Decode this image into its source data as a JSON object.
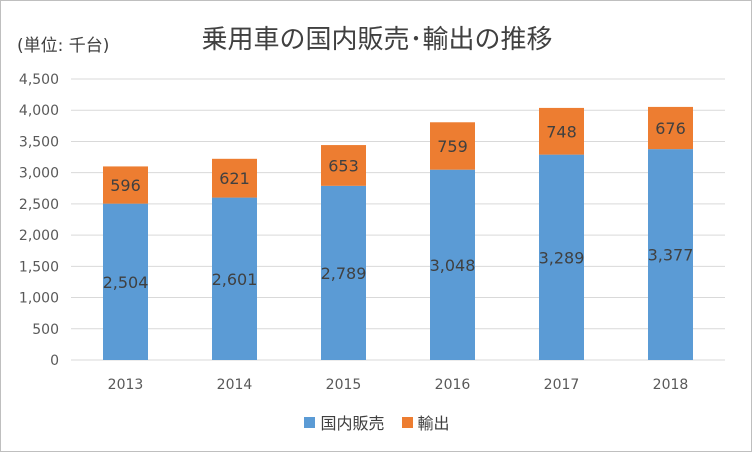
{
  "chart_data": {
    "type": "bar",
    "stacked": true,
    "title": "乗用車の国内販売･輸出の推移",
    "unit_label": "(単位: 千台)",
    "categories": [
      "2013",
      "2014",
      "2015",
      "2016",
      "2017",
      "2018"
    ],
    "series": [
      {
        "name": "国内販売",
        "color": "#5b9bd5",
        "values": [
          2504,
          2601,
          2789,
          3048,
          3289,
          3377
        ]
      },
      {
        "name": "輸出",
        "color": "#ed7d31",
        "values": [
          596,
          621,
          653,
          759,
          748,
          676
        ]
      }
    ],
    "ylim": [
      0,
      4500
    ],
    "yticks": [
      0,
      500,
      1000,
      1500,
      2000,
      2500,
      3000,
      3500,
      4000,
      4500
    ],
    "ytick_labels": [
      "0",
      "500",
      "1,000",
      "1,500",
      "2,000",
      "2,500",
      "3,000",
      "3,500",
      "4,000",
      "4,500"
    ],
    "data_labels": [
      [
        "2,504",
        "2,601",
        "2,789",
        "3,048",
        "3,289",
        "3,377"
      ],
      [
        "596",
        "621",
        "653",
        "759",
        "748",
        "676"
      ]
    ],
    "grid": true,
    "legend_position": "bottom"
  }
}
